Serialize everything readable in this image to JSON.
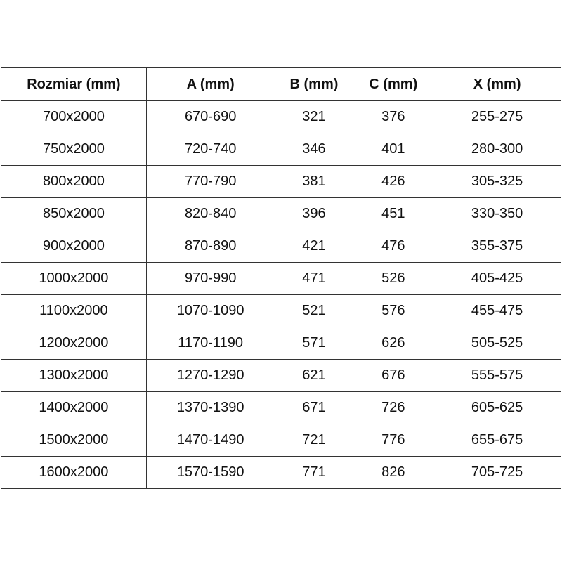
{
  "headers": [
    "Rozmiar (mm)",
    "A (mm)",
    "B (mm)",
    "C (mm)",
    "X (mm)"
  ],
  "rows": [
    [
      "700x2000",
      "670-690",
      "321",
      "376",
      "255-275"
    ],
    [
      "750x2000",
      "720-740",
      "346",
      "401",
      "280-300"
    ],
    [
      "800x2000",
      "770-790",
      "381",
      "426",
      "305-325"
    ],
    [
      "850x2000",
      "820-840",
      "396",
      "451",
      "330-350"
    ],
    [
      "900x2000",
      "870-890",
      "421",
      "476",
      "355-375"
    ],
    [
      "1000x2000",
      "970-990",
      "471",
      "526",
      "405-425"
    ],
    [
      "1100x2000",
      "1070-1090",
      "521",
      "576",
      "455-475"
    ],
    [
      "1200x2000",
      "1170-1190",
      "571",
      "626",
      "505-525"
    ],
    [
      "1300x2000",
      "1270-1290",
      "621",
      "676",
      "555-575"
    ],
    [
      "1400x2000",
      "1370-1390",
      "671",
      "726",
      "605-625"
    ],
    [
      "1500x2000",
      "1470-1490",
      "721",
      "776",
      "655-675"
    ],
    [
      "1600x2000",
      "1570-1590",
      "771",
      "826",
      "705-725"
    ]
  ]
}
